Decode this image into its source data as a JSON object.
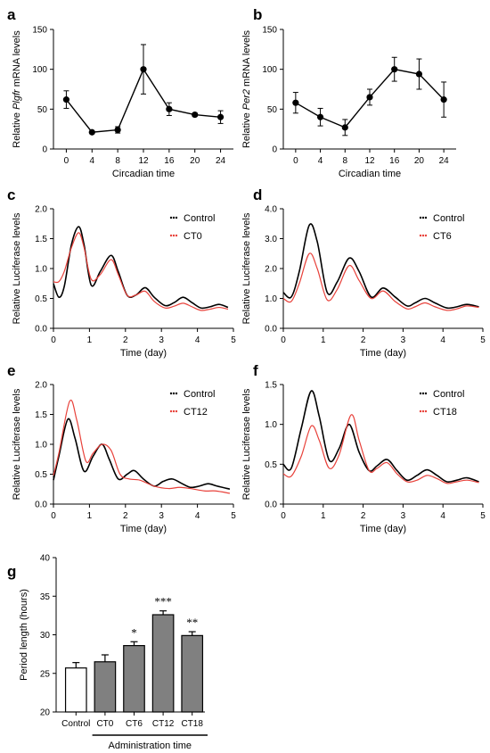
{
  "chart_data": [
    {
      "panel": "a",
      "type": "line",
      "ylabel_prefix": "Relative ",
      "ylabel_gene": "Plgfr",
      "ylabel_suffix": " mRNA levels",
      "xlabel": "Circadian time",
      "x": [
        0,
        4,
        8,
        12,
        16,
        20,
        24
      ],
      "xticks": [
        "0",
        "4",
        "8",
        "12",
        "16",
        "20",
        "24"
      ],
      "xlim": [
        -2,
        26
      ],
      "ylim": [
        0,
        150
      ],
      "yticks": [
        0,
        50,
        100,
        150
      ],
      "values": [
        62,
        21,
        24,
        100,
        50,
        43,
        40
      ],
      "errors": [
        11,
        1,
        4,
        31,
        8,
        2,
        8
      ],
      "color": "#000000"
    },
    {
      "panel": "b",
      "type": "line",
      "ylabel_prefix": "Relative ",
      "ylabel_gene": "Per2",
      "ylabel_suffix": " mRNA levels",
      "xlabel": "Circadian time",
      "x": [
        0,
        4,
        8,
        12,
        16,
        20,
        24
      ],
      "xticks": [
        "0",
        "4",
        "8",
        "12",
        "16",
        "20",
        "24"
      ],
      "xlim": [
        -2,
        26
      ],
      "ylim": [
        0,
        150
      ],
      "yticks": [
        0,
        50,
        100,
        150
      ],
      "values": [
        58,
        40,
        27,
        65,
        100,
        94,
        62
      ],
      "errors": [
        13,
        11,
        10,
        10,
        15,
        19,
        22
      ],
      "color": "#000000"
    },
    {
      "panel": "c",
      "type": "line",
      "ylabel": "Relative Luciferase levels",
      "xlabel": "Time (day)",
      "xlim": [
        0,
        5
      ],
      "xticks": [
        0,
        1,
        2,
        3,
        4,
        5
      ],
      "ylim": [
        0,
        2.0
      ],
      "yticks": [
        "0.0",
        "0.5",
        "1.0",
        "1.5",
        "2.0"
      ],
      "legend_placement": "top-right",
      "series": [
        {
          "name": "Control",
          "color": "#000000",
          "x": [
            0,
            0.15,
            0.3,
            0.5,
            0.7,
            0.85,
            1.05,
            1.3,
            1.6,
            1.8,
            2.05,
            2.3,
            2.55,
            2.8,
            3.1,
            3.35,
            3.6,
            3.85,
            4.1,
            4.35,
            4.6,
            4.85
          ],
          "y": [
            0.75,
            0.52,
            0.7,
            1.4,
            1.7,
            1.4,
            0.72,
            0.95,
            1.22,
            0.95,
            0.55,
            0.56,
            0.68,
            0.52,
            0.38,
            0.43,
            0.52,
            0.43,
            0.34,
            0.36,
            0.4,
            0.35
          ]
        },
        {
          "name": "CT0",
          "color": "#e8413a",
          "x": [
            0,
            0.15,
            0.3,
            0.5,
            0.7,
            0.85,
            1.05,
            1.3,
            1.6,
            1.8,
            2.05,
            2.3,
            2.55,
            2.8,
            3.1,
            3.35,
            3.6,
            3.85,
            4.1,
            4.35,
            4.6,
            4.85
          ],
          "y": [
            0.78,
            0.78,
            0.95,
            1.35,
            1.6,
            1.35,
            0.82,
            0.9,
            1.15,
            0.9,
            0.55,
            0.56,
            0.62,
            0.45,
            0.34,
            0.37,
            0.42,
            0.36,
            0.3,
            0.32,
            0.35,
            0.32
          ]
        }
      ]
    },
    {
      "panel": "d",
      "type": "line",
      "ylabel": "Relative Luciferase levels",
      "xlabel": "Time (day)",
      "xlim": [
        0,
        5
      ],
      "xticks": [
        0,
        1,
        2,
        3,
        4,
        5
      ],
      "ylim": [
        0,
        4.0
      ],
      "yticks": [
        "0.0",
        "1.0",
        "2.0",
        "3.0",
        "4.0"
      ],
      "legend_placement": "top-right",
      "series": [
        {
          "name": "Control",
          "color": "#000000",
          "x": [
            0,
            0.2,
            0.4,
            0.65,
            0.85,
            1.1,
            1.35,
            1.65,
            1.9,
            2.2,
            2.5,
            2.8,
            3.1,
            3.3,
            3.55,
            3.8,
            4.1,
            4.35,
            4.6,
            4.9
          ],
          "y": [
            1.2,
            1.05,
            1.9,
            3.45,
            2.9,
            1.2,
            1.55,
            2.35,
            1.9,
            1.05,
            1.35,
            1.05,
            0.75,
            0.85,
            1.0,
            0.85,
            0.68,
            0.72,
            0.8,
            0.72
          ]
        },
        {
          "name": "CT6",
          "color": "#e8413a",
          "x": [
            0,
            0.2,
            0.4,
            0.65,
            0.85,
            1.1,
            1.35,
            1.65,
            1.9,
            2.2,
            2.5,
            2.8,
            3.1,
            3.3,
            3.55,
            3.8,
            4.1,
            4.35,
            4.6,
            4.9
          ],
          "y": [
            1.0,
            0.9,
            1.5,
            2.5,
            2.0,
            0.95,
            1.3,
            2.1,
            1.6,
            1.0,
            1.25,
            0.9,
            0.65,
            0.72,
            0.85,
            0.72,
            0.6,
            0.65,
            0.75,
            0.7
          ]
        }
      ]
    },
    {
      "panel": "e",
      "type": "line",
      "ylabel": "Relative Luciferase levels",
      "xlabel": "Time (day)",
      "xlim": [
        0,
        5
      ],
      "xticks": [
        0,
        1,
        2,
        3,
        4,
        5
      ],
      "ylim": [
        0,
        2.0
      ],
      "yticks": [
        "0.0",
        "0.5",
        "1.0",
        "1.5",
        "2.0"
      ],
      "legend_placement": "top-right",
      "series": [
        {
          "name": "Control",
          "color": "#000000",
          "x": [
            0,
            0.15,
            0.4,
            0.6,
            0.85,
            1.1,
            1.35,
            1.55,
            1.8,
            2.05,
            2.25,
            2.5,
            2.8,
            3.05,
            3.3,
            3.55,
            3.8,
            4.05,
            4.3,
            4.55,
            4.9
          ],
          "y": [
            0.4,
            0.8,
            1.42,
            1.1,
            0.55,
            0.8,
            1.0,
            0.75,
            0.42,
            0.5,
            0.56,
            0.42,
            0.3,
            0.38,
            0.42,
            0.35,
            0.28,
            0.3,
            0.34,
            0.3,
            0.25
          ]
        },
        {
          "name": "CT12",
          "color": "#e8413a",
          "x": [
            0,
            0.15,
            0.45,
            0.65,
            0.9,
            1.1,
            1.35,
            1.6,
            1.85,
            2.1,
            2.4,
            2.8,
            3.2,
            3.5,
            3.8,
            4.2,
            4.5,
            4.9
          ],
          "y": [
            0.48,
            0.85,
            1.72,
            1.4,
            0.72,
            0.85,
            1.0,
            0.9,
            0.5,
            0.42,
            0.4,
            0.3,
            0.26,
            0.28,
            0.26,
            0.22,
            0.22,
            0.18
          ]
        }
      ]
    },
    {
      "panel": "f",
      "type": "line",
      "ylabel": "Relative Luciferase levels",
      "xlabel": "Time (day)",
      "xlim": [
        0,
        5
      ],
      "xticks": [
        0,
        1,
        2,
        3,
        4,
        5
      ],
      "ylim": [
        0,
        1.5
      ],
      "yticks": [
        "0.0",
        "0.5",
        "1.0",
        "1.5"
      ],
      "legend_placement": "top-right",
      "series": [
        {
          "name": "Control",
          "color": "#000000",
          "x": [
            0,
            0.2,
            0.45,
            0.7,
            0.9,
            1.15,
            1.4,
            1.65,
            1.9,
            2.15,
            2.35,
            2.6,
            2.85,
            3.1,
            3.35,
            3.6,
            3.85,
            4.1,
            4.35,
            4.6,
            4.9
          ],
          "y": [
            0.5,
            0.45,
            0.95,
            1.42,
            1.1,
            0.55,
            0.7,
            1.0,
            0.65,
            0.42,
            0.48,
            0.56,
            0.42,
            0.3,
            0.36,
            0.43,
            0.36,
            0.28,
            0.3,
            0.33,
            0.28
          ]
        },
        {
          "name": "CT18",
          "color": "#e8413a",
          "x": [
            0,
            0.2,
            0.45,
            0.7,
            0.9,
            1.15,
            1.4,
            1.7,
            1.9,
            2.15,
            2.35,
            2.6,
            2.85,
            3.1,
            3.35,
            3.6,
            3.85,
            4.1,
            4.35,
            4.6,
            4.9
          ],
          "y": [
            0.38,
            0.35,
            0.6,
            0.98,
            0.8,
            0.45,
            0.62,
            1.12,
            0.8,
            0.42,
            0.45,
            0.52,
            0.38,
            0.28,
            0.3,
            0.36,
            0.32,
            0.26,
            0.28,
            0.3,
            0.27
          ]
        }
      ]
    },
    {
      "panel": "g",
      "type": "bar",
      "ylabel": "Period length (hours)",
      "xlabel": "Administration time",
      "categories": [
        "Control",
        "CT0",
        "CT6",
        "CT12",
        "CT18"
      ],
      "values": [
        25.7,
        26.5,
        28.6,
        32.6,
        29.9
      ],
      "errors": [
        0.7,
        0.9,
        0.5,
        0.5,
        0.5
      ],
      "fills": [
        "#ffffff",
        "#808080",
        "#808080",
        "#808080",
        "#808080"
      ],
      "significance": [
        "",
        "",
        "*",
        "***",
        "**"
      ],
      "ylim": [
        20,
        40
      ],
      "yticks": [
        20,
        25,
        30,
        35,
        40
      ]
    }
  ]
}
